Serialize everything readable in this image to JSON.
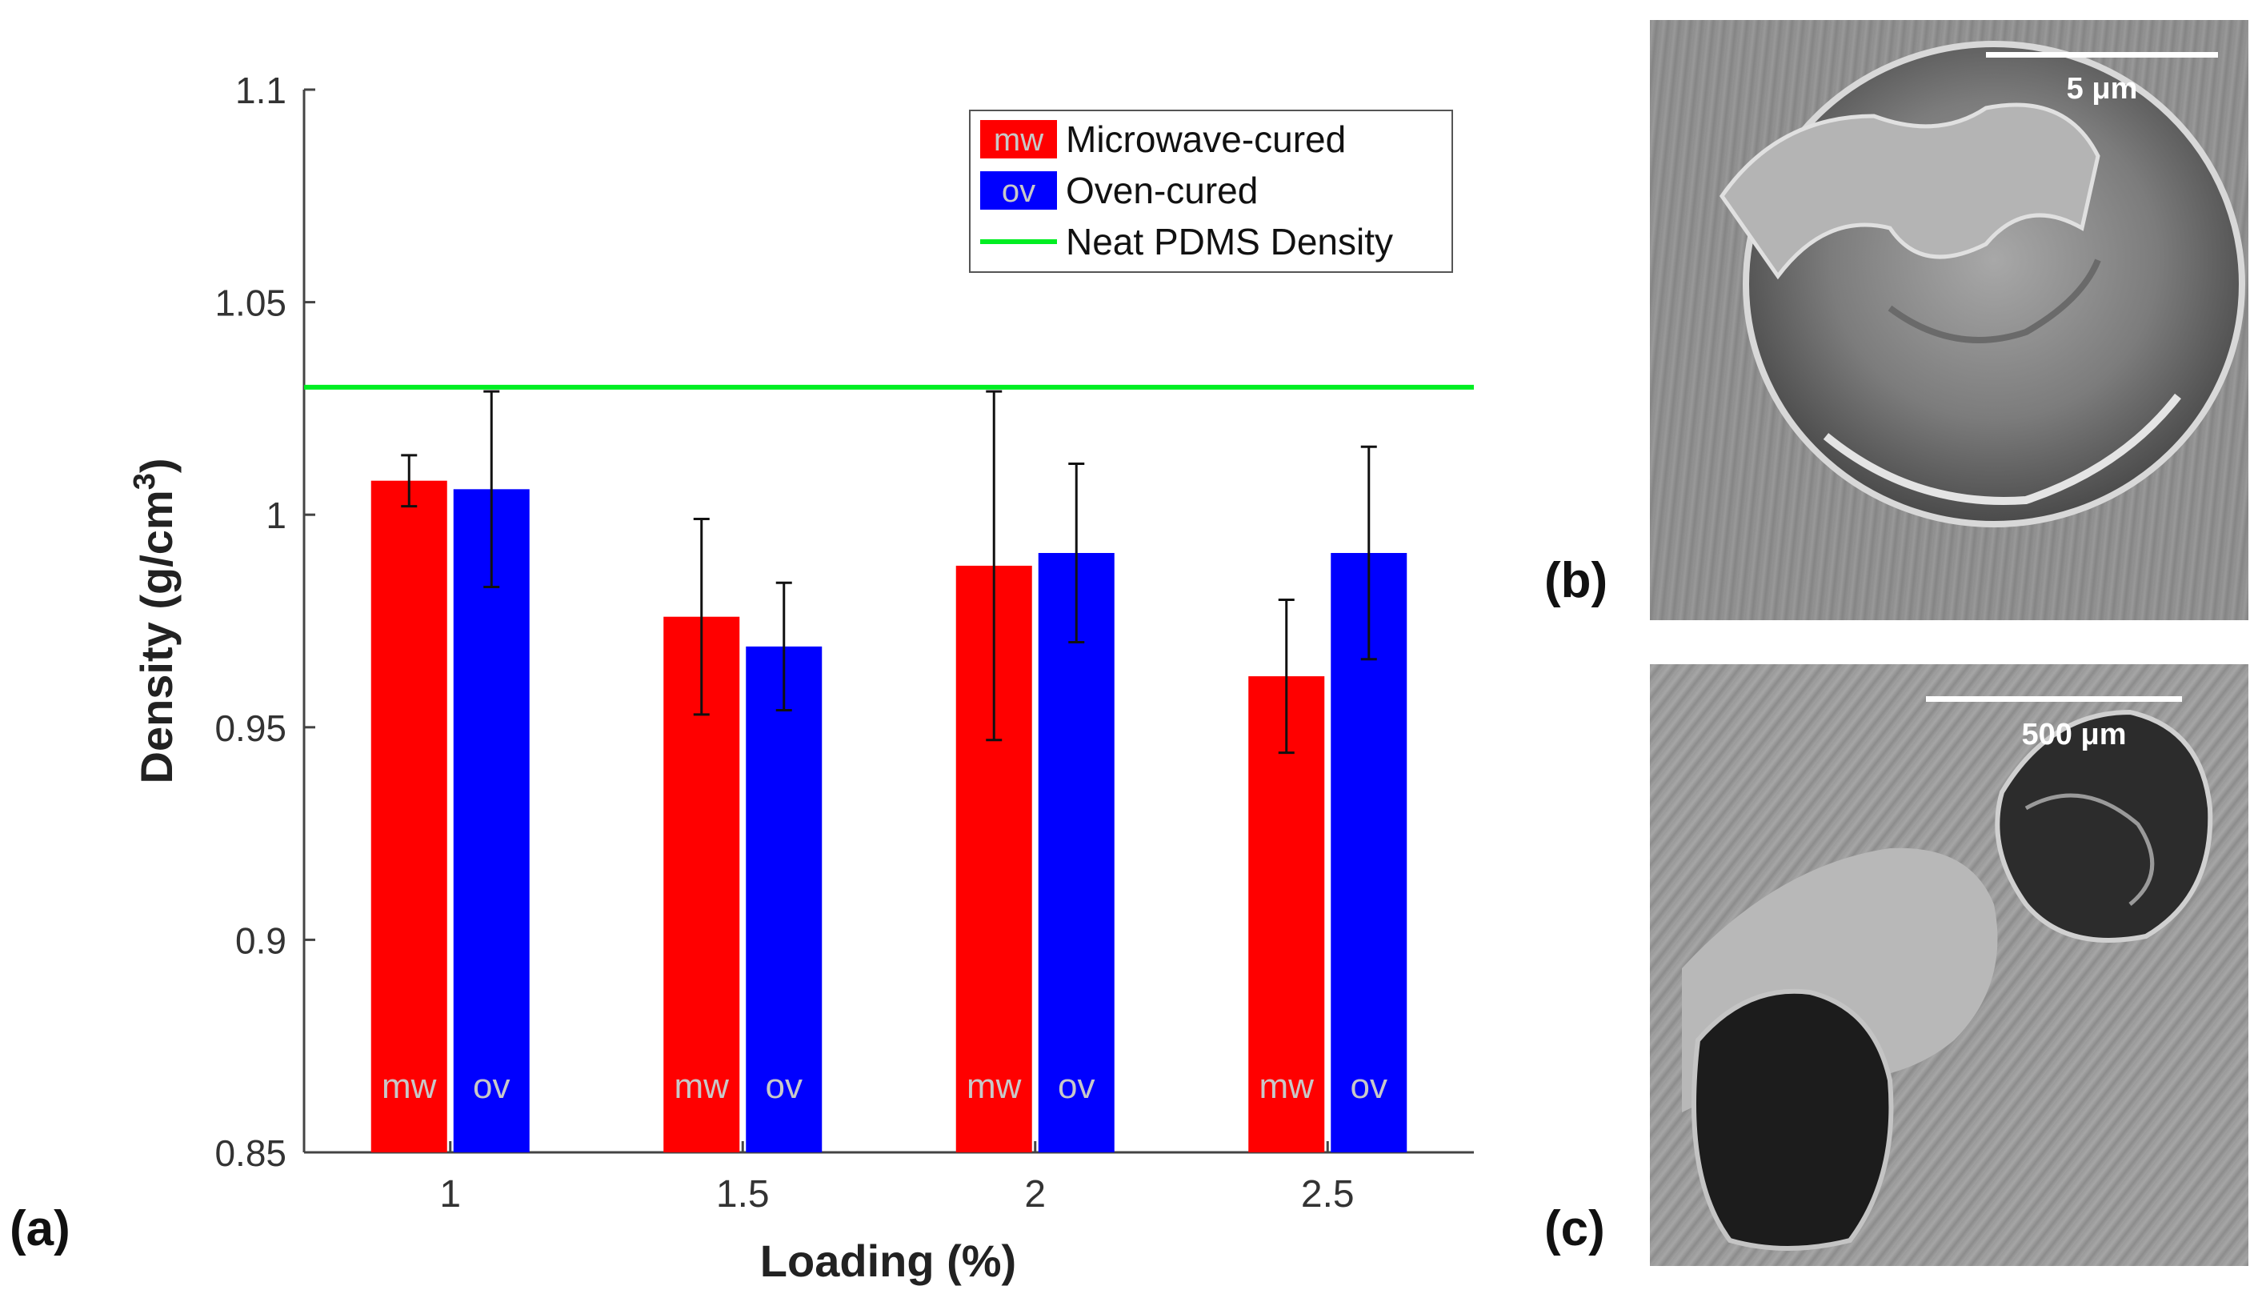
{
  "panels": {
    "a_label": "(a)",
    "b_label": "(b)",
    "c_label": "(c)",
    "b_scale_bar": "5 μm",
    "c_scale_bar": "500 μm"
  },
  "chart_data": {
    "type": "bar",
    "xlabel": "Loading (%)",
    "ylabel_base": "Density (g/cm",
    "ylabel_sup": "3",
    "ylabel_close": ")",
    "ylim": [
      0.85,
      1.1
    ],
    "yticks": [
      "0.85",
      "0.9",
      "0.95",
      "1",
      "1.05",
      "1.1"
    ],
    "categories": [
      "1",
      "1.5",
      "2",
      "2.5"
    ],
    "series": [
      {
        "name": "Microwave-cured",
        "tag": "mw",
        "color": "#ff0000",
        "values": [
          1.008,
          0.976,
          0.988,
          0.962
        ],
        "errors": [
          0.006,
          0.023,
          0.041,
          0.018
        ]
      },
      {
        "name": "Oven-cured",
        "tag": "ov",
        "color": "#0000ff",
        "values": [
          1.006,
          0.969,
          0.991,
          0.991
        ],
        "errors": [
          0.023,
          0.015,
          0.021,
          0.025
        ]
      }
    ],
    "reference_line": {
      "name": "Neat PDMS Density",
      "value": 1.03,
      "color": "#00ee22"
    },
    "legend_position": "top-right"
  }
}
